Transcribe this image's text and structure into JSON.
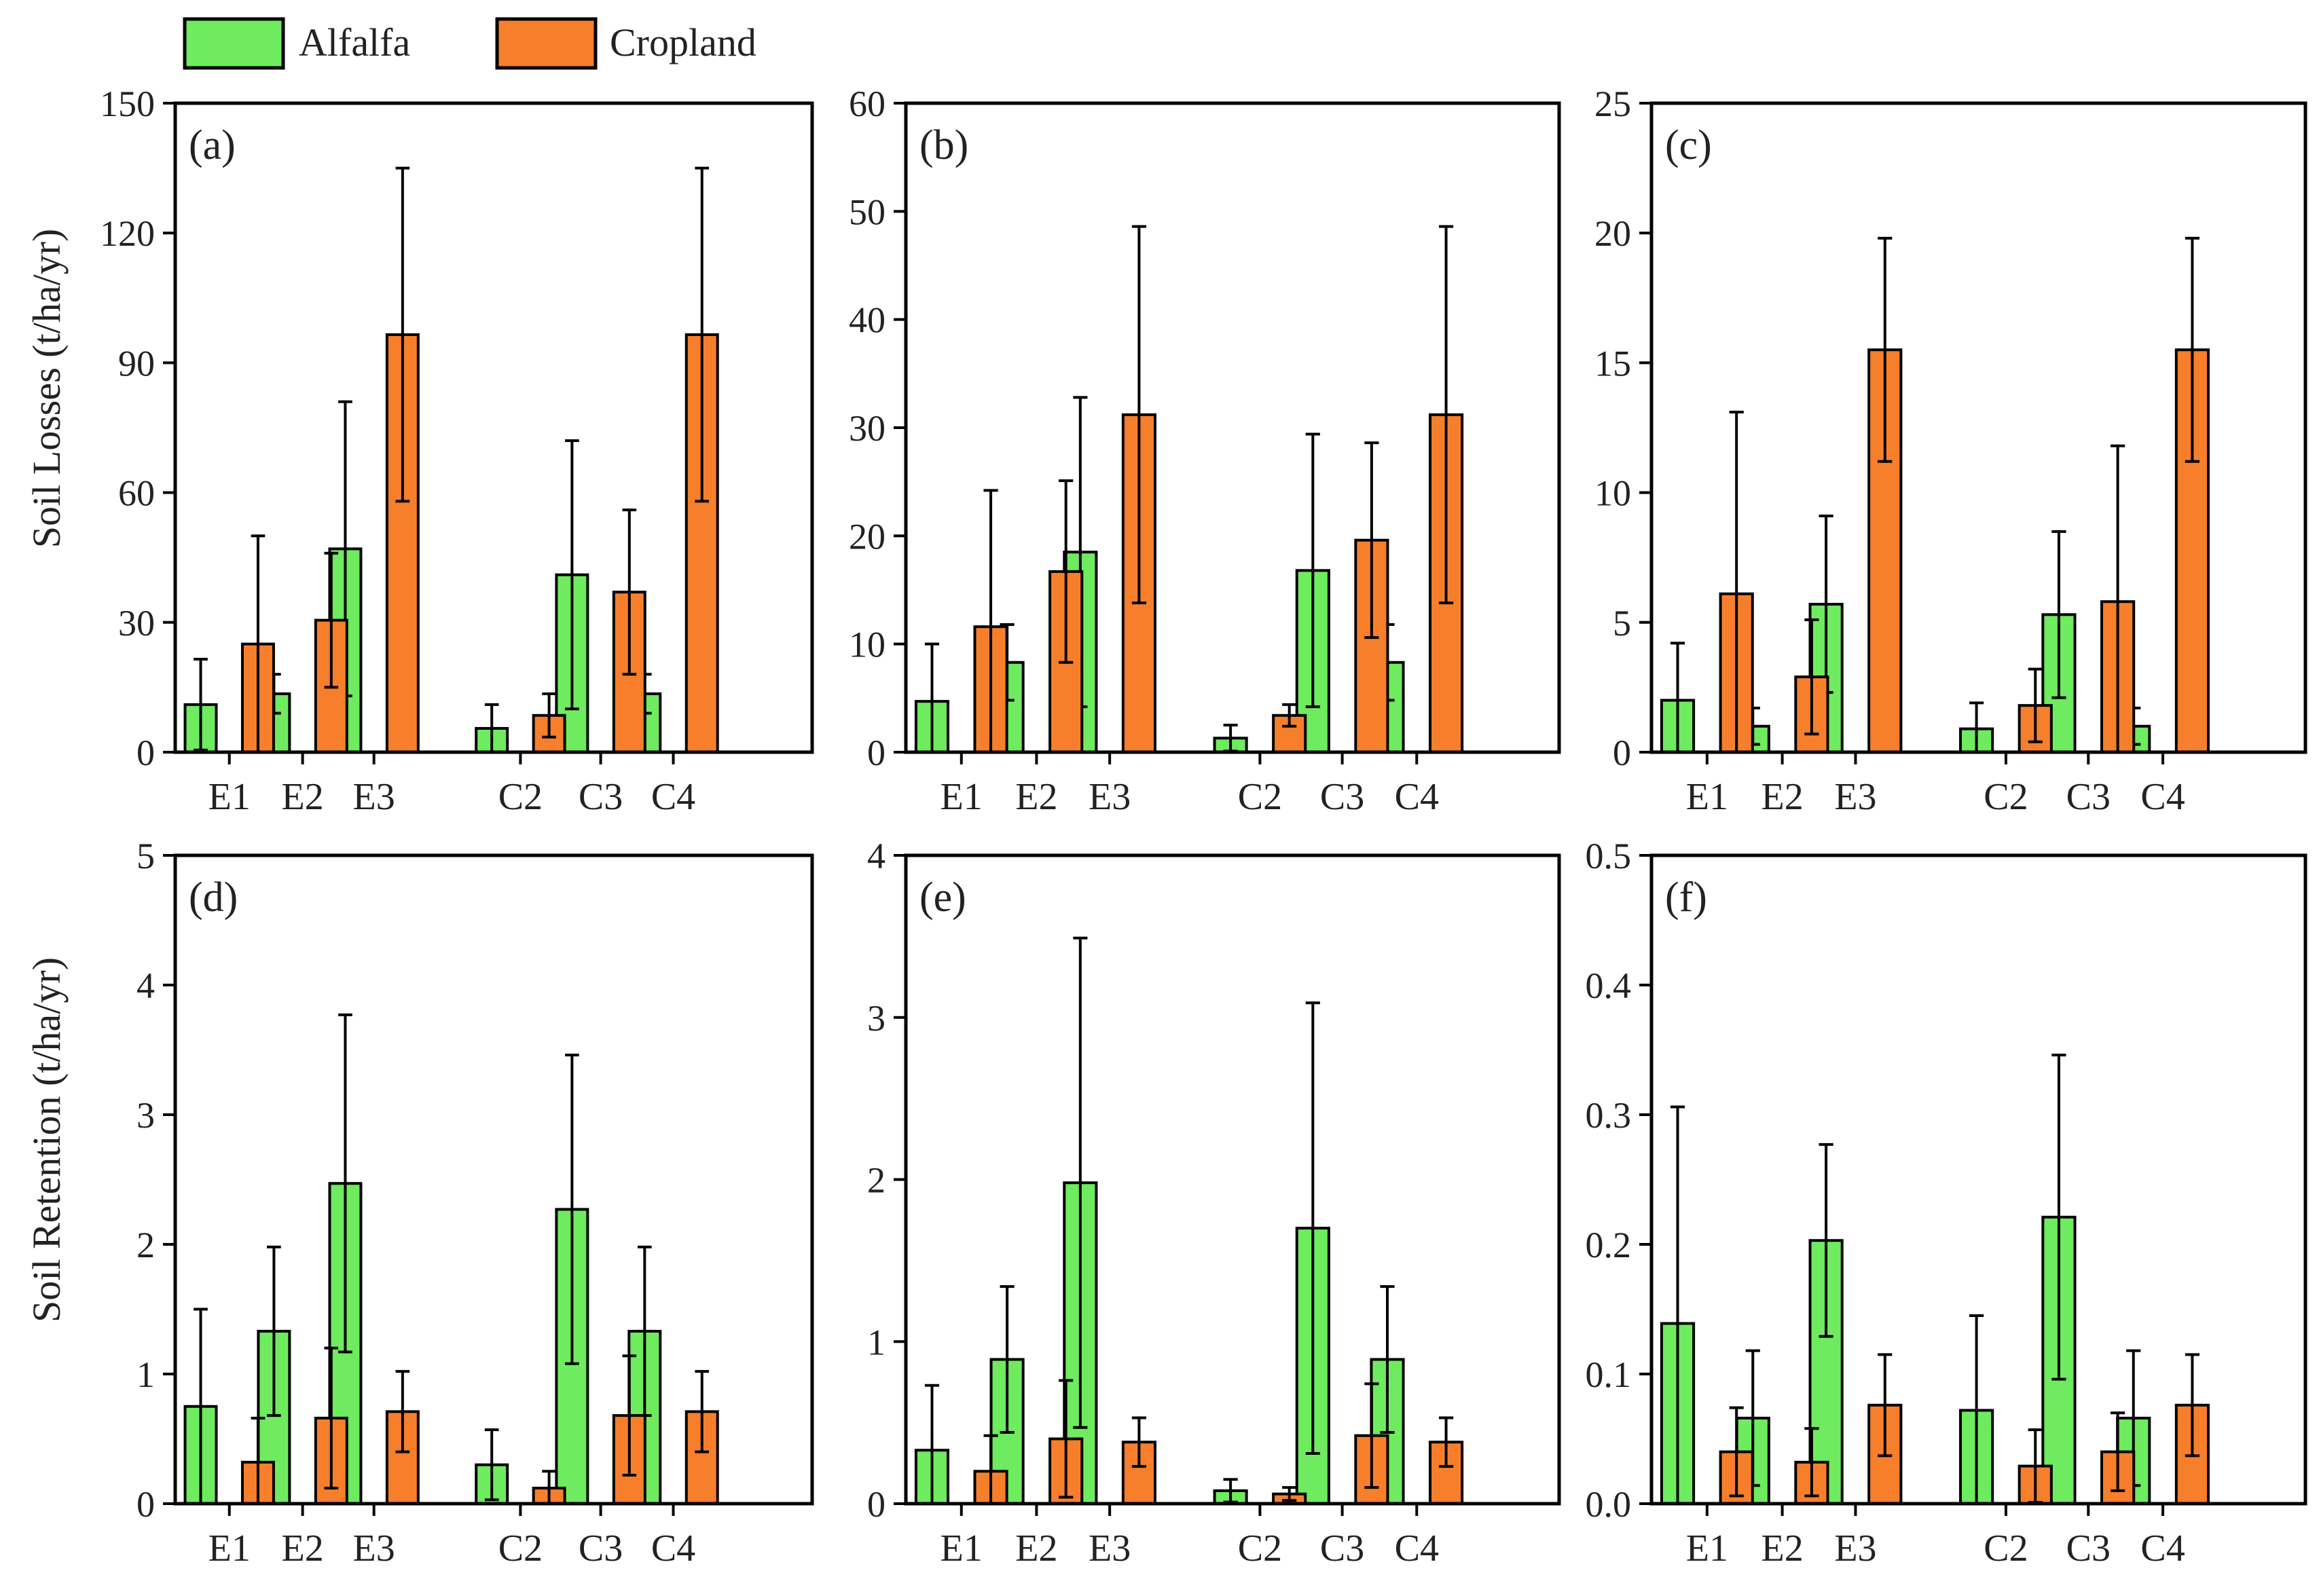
{
  "legend": {
    "items": [
      {
        "label": "Alfalfa",
        "color": "#6EEB5E"
      },
      {
        "label": "Cropland",
        "color": "#F77F2B"
      }
    ]
  },
  "row_ylabels": [
    "Soil Losses (t/ha/yr)",
    "Soil Retention (t/ha/yr)"
  ],
  "chart_data": [
    {
      "type": "bar",
      "panel": "(a)",
      "ylabel": "Soil Losses (t/ha/yr)",
      "categories": [
        "E1",
        "E2",
        "E3",
        "C2",
        "C3",
        "C4"
      ],
      "ylim": [
        0,
        150
      ],
      "yticks": [
        "0",
        "30",
        "60",
        "90",
        "120",
        "150"
      ],
      "series": [
        {
          "name": "Alfalfa",
          "values": [
            11,
            13.5,
            47,
            5.5,
            41,
            13.5
          ],
          "errors": [
            10.5,
            4.5,
            34,
            5.5,
            31,
            4.5
          ]
        },
        {
          "name": "Cropland",
          "values": [
            25,
            30.5,
            96.5,
            8.5,
            37,
            96.5
          ],
          "errors": [
            25,
            15.5,
            38.5,
            5,
            19,
            38.5
          ]
        }
      ]
    },
    {
      "type": "bar",
      "panel": "(b)",
      "ylabel": "",
      "categories": [
        "E1",
        "E2",
        "E3",
        "C2",
        "C3",
        "C4"
      ],
      "ylim": [
        0,
        60
      ],
      "yticks": [
        "0",
        "10",
        "20",
        "30",
        "40",
        "50",
        "60"
      ],
      "series": [
        {
          "name": "Alfalfa",
          "values": [
            4.7,
            8.3,
            18.5,
            1.3,
            16.8,
            8.3
          ],
          "errors": [
            5.3,
            3.5,
            14.3,
            1.2,
            12.6,
            3.5
          ]
        },
        {
          "name": "Cropland",
          "values": [
            11.6,
            16.7,
            31.2,
            3.4,
            19.6,
            31.2
          ],
          "errors": [
            12.6,
            8.4,
            17.4,
            1,
            9,
            17.4
          ]
        }
      ]
    },
    {
      "type": "bar",
      "panel": "(c)",
      "ylabel": "",
      "categories": [
        "E1",
        "E2",
        "E3",
        "C2",
        "C3",
        "C4"
      ],
      "ylim": [
        0,
        25
      ],
      "yticks": [
        "0",
        "5",
        "10",
        "15",
        "20",
        "25"
      ],
      "series": [
        {
          "name": "Alfalfa",
          "values": [
            2,
            1,
            5.7,
            0.9,
            5.3,
            1
          ],
          "errors": [
            2.2,
            0.7,
            3.4,
            1,
            3.2,
            0.7
          ]
        },
        {
          "name": "Cropland",
          "values": [
            6.1,
            2.9,
            15.5,
            1.8,
            5.8,
            15.5
          ],
          "errors": [
            7,
            2.2,
            4.3,
            1.4,
            6,
            4.3
          ]
        }
      ]
    },
    {
      "type": "bar",
      "panel": "(d)",
      "ylabel": "Soil Retention (t/ha/yr)",
      "categories": [
        "E1",
        "E2",
        "E3",
        "C2",
        "C3",
        "C4"
      ],
      "ylim": [
        0,
        5
      ],
      "yticks": [
        "0",
        "1",
        "2",
        "3",
        "4",
        "5"
      ],
      "series": [
        {
          "name": "Alfalfa",
          "values": [
            0.75,
            1.33,
            2.47,
            0.3,
            2.27,
            1.33
          ],
          "errors": [
            0.75,
            0.65,
            1.3,
            0.27,
            1.19,
            0.65
          ]
        },
        {
          "name": "Cropland",
          "values": [
            0.32,
            0.66,
            0.71,
            0.12,
            0.68,
            0.71
          ],
          "errors": [
            0.34,
            0.54,
            0.31,
            0.13,
            0.46,
            0.31
          ]
        }
      ]
    },
    {
      "type": "bar",
      "panel": "(e)",
      "ylabel": "",
      "categories": [
        "E1",
        "E2",
        "E3",
        "C2",
        "C3",
        "C4"
      ],
      "ylim": [
        0,
        4
      ],
      "yticks": [
        "0",
        "1",
        "2",
        "3",
        "4"
      ],
      "series": [
        {
          "name": "Alfalfa",
          "values": [
            0.33,
            0.89,
            1.98,
            0.08,
            1.7,
            0.89
          ],
          "errors": [
            0.4,
            0.45,
            1.51,
            0.07,
            1.39,
            0.45
          ]
        },
        {
          "name": "Cropland",
          "values": [
            0.2,
            0.4,
            0.38,
            0.06,
            0.42,
            0.38
          ],
          "errors": [
            0.22,
            0.36,
            0.15,
            0.04,
            0.32,
            0.15
          ]
        }
      ]
    },
    {
      "type": "bar",
      "panel": "(f)",
      "ylabel": "",
      "categories": [
        "E1",
        "E2",
        "E3",
        "C2",
        "C3",
        "C4"
      ],
      "ylim": [
        0,
        0.5
      ],
      "yticks": [
        "0.0",
        "0.1",
        "0.2",
        "0.3",
        "0.4",
        "0.5"
      ],
      "series": [
        {
          "name": "Alfalfa",
          "values": [
            0.139,
            0.066,
            0.203,
            0.072,
            0.221,
            0.066
          ],
          "errors": [
            0.167,
            0.052,
            0.074,
            0.073,
            0.125,
            0.052
          ]
        },
        {
          "name": "Cropland",
          "values": [
            0.04,
            0.032,
            0.076,
            0.029,
            0.04,
            0.076
          ],
          "errors": [
            0.034,
            0.026,
            0.039,
            0.028,
            0.03,
            0.039
          ]
        }
      ]
    }
  ]
}
